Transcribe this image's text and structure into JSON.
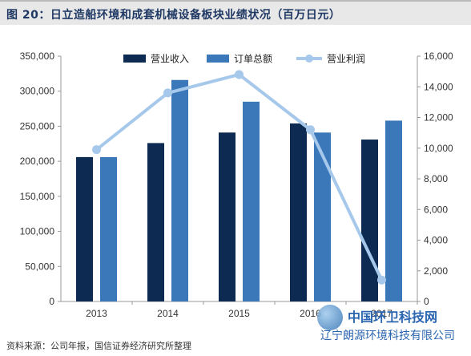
{
  "header": {
    "title": "图 20：日立造船环境和成套机械设备板块业绩状况（百万日元）"
  },
  "footer": {
    "source": "资料来源：公司年报，国信证券经济研究所整理"
  },
  "watermark": {
    "line1": "中国环卫科技网",
    "line2": "辽宁朗源环境科技有限公司"
  },
  "colors": {
    "revenue": "#0d2b52",
    "orders": "#3a78b9",
    "profit": "#a6c8ea"
  },
  "chart_data": {
    "type": "bar",
    "categories": [
      "2013",
      "2014",
      "2015",
      "2016",
      "2017"
    ],
    "series": [
      {
        "name": "营业收入",
        "type": "bar",
        "axis": "left",
        "values": [
          206000,
          226000,
          241000,
          254000,
          231000
        ]
      },
      {
        "name": "订单总额",
        "type": "bar",
        "axis": "left",
        "values": [
          206000,
          316000,
          285000,
          241000,
          258000
        ]
      },
      {
        "name": "营业利润",
        "type": "line",
        "axis": "right",
        "values": [
          9900,
          13600,
          14800,
          11200,
          1400
        ]
      }
    ],
    "y_left": {
      "ylim": [
        0,
        350000
      ],
      "ticks": [
        "0",
        "50,000",
        "100,000",
        "150,000",
        "200,000",
        "250,000",
        "300,000",
        "350,000"
      ]
    },
    "y_right": {
      "ylim": [
        0,
        16000
      ],
      "ticks": [
        "0",
        "2,000",
        "4,000",
        "6,000",
        "8,000",
        "10,000",
        "12,000",
        "14,000",
        "16,000"
      ]
    },
    "x_tick_labels": [
      "2013",
      "2014",
      "2015",
      "2016",
      "2017"
    ],
    "legend": [
      "营业收入",
      "订单总额",
      "营业利润"
    ],
    "legend_position": "top",
    "grid": false
  }
}
